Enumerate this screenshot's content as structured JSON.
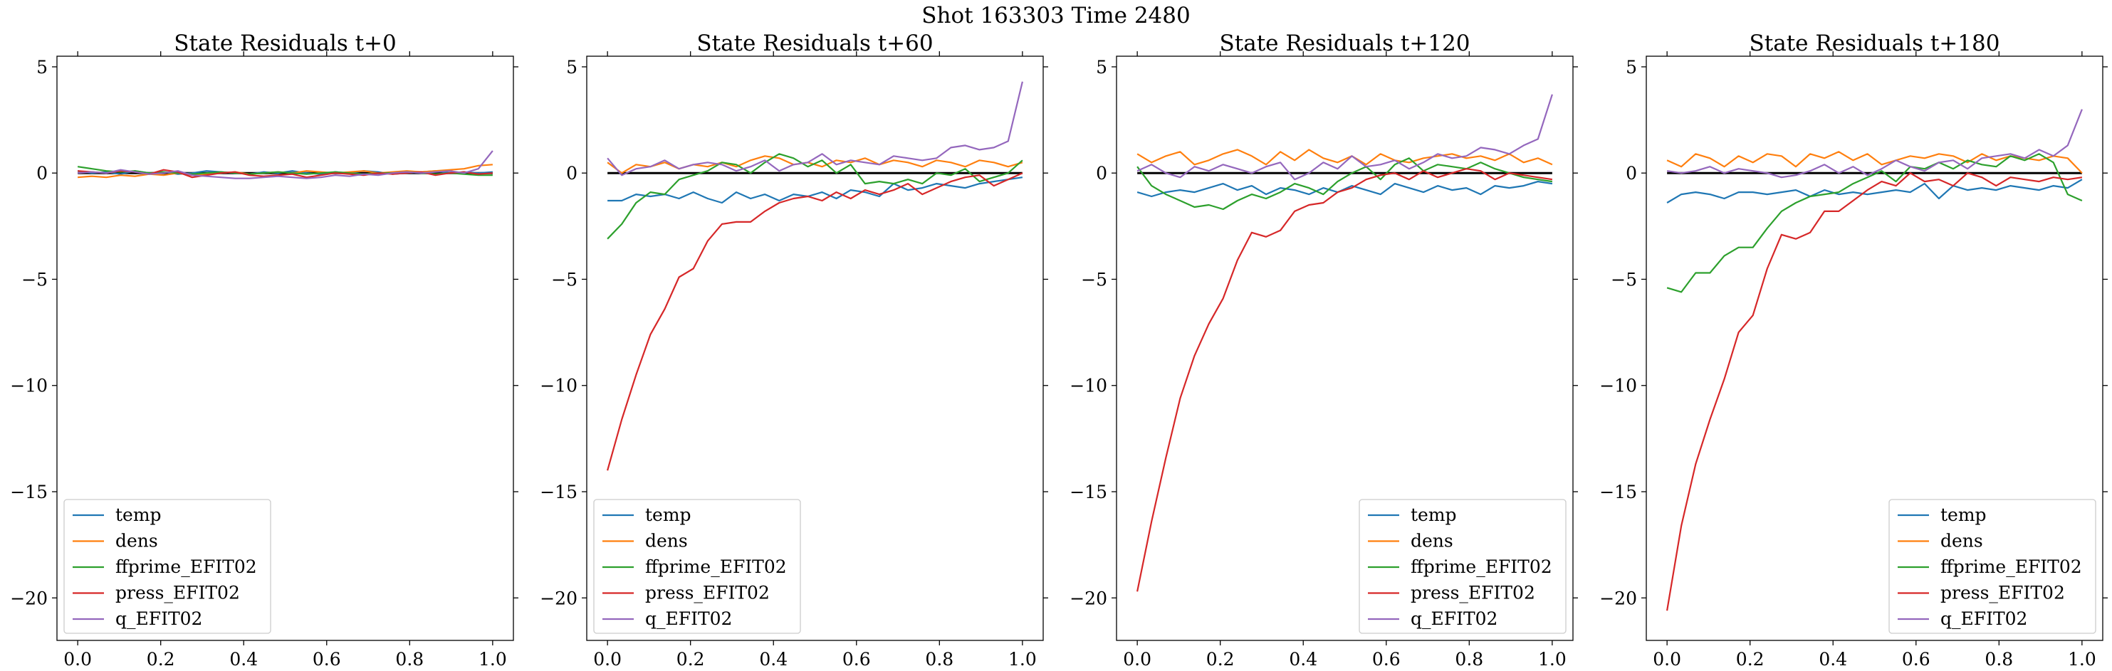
{
  "suptitle": "Shot 163303   Time 2480",
  "chart_data": [
    {
      "type": "line",
      "title": "State Residuals t+0",
      "xlim": [
        -0.05,
        1.05
      ],
      "ylim": [
        -22,
        5.5
      ],
      "xticks": [
        0.0,
        0.2,
        0.4,
        0.6,
        0.8,
        1.0
      ],
      "xtick_labels": [
        "0.0",
        "0.2",
        "0.4",
        "0.6",
        "0.8",
        "1.0"
      ],
      "yticks": [
        -20,
        -15,
        -10,
        -5,
        0,
        5
      ],
      "ytick_labels": [
        "−20",
        "−15",
        "−10",
        "−5",
        "0",
        "5"
      ],
      "reference_line": 0,
      "legend_position": "lower left",
      "x": [
        0.0,
        0.0345,
        0.069,
        0.1034,
        0.1379,
        0.1724,
        0.2069,
        0.2414,
        0.2759,
        0.3103,
        0.3448,
        0.3793,
        0.4138,
        0.4483,
        0.4828,
        0.5172,
        0.5517,
        0.5862,
        0.6207,
        0.6552,
        0.6897,
        0.7241,
        0.7586,
        0.7931,
        0.8276,
        0.8621,
        0.8966,
        0.931,
        0.9655,
        1.0
      ],
      "series": [
        {
          "name": "temp",
          "color": "#1f77b4",
          "values": [
            0.1,
            0.0,
            0.05,
            -0.05,
            0.1,
            0.0,
            0.05,
            -0.05,
            0.0,
            0.1,
            0.05,
            0.0,
            -0.05,
            0.05,
            0.0,
            0.1,
            0.0,
            -0.05,
            0.05,
            0.0,
            0.1,
            0.05,
            -0.05,
            0.0,
            0.05,
            0.1,
            0.0,
            0.05,
            0.0,
            0.05
          ]
        },
        {
          "name": "dens",
          "color": "#ff7f0e",
          "values": [
            -0.2,
            -0.15,
            -0.2,
            -0.1,
            -0.15,
            -0.05,
            -0.1,
            0.0,
            -0.1,
            -0.05,
            0.0,
            0.05,
            -0.05,
            0.0,
            0.05,
            0.0,
            0.1,
            0.05,
            0.0,
            0.05,
            0.1,
            0.0,
            0.05,
            0.1,
            0.05,
            0.1,
            0.15,
            0.2,
            0.35,
            0.4
          ]
        },
        {
          "name": "ffprime_EFIT02",
          "color": "#2ca02c",
          "values": [
            0.3,
            0.2,
            0.1,
            0.05,
            0.1,
            0.0,
            0.05,
            0.0,
            -0.05,
            0.0,
            0.05,
            0.0,
            -0.05,
            0.0,
            0.05,
            0.0,
            -0.05,
            0.0,
            0.05,
            0.0,
            -0.05,
            0.0,
            0.0,
            0.05,
            0.0,
            -0.05,
            0.0,
            -0.05,
            -0.1,
            -0.1
          ]
        },
        {
          "name": "press_EFIT02",
          "color": "#d62728",
          "values": [
            0.1,
            0.05,
            0.0,
            0.1,
            0.05,
            -0.05,
            0.15,
            0.05,
            -0.2,
            -0.1,
            0.0,
            0.05,
            -0.1,
            -0.15,
            -0.1,
            -0.05,
            -0.2,
            -0.1,
            0.0,
            -0.05,
            -0.1,
            0.0,
            -0.05,
            0.0,
            0.05,
            -0.1,
            0.0,
            0.05,
            -0.05,
            0.0
          ]
        },
        {
          "name": "q_EFIT02",
          "color": "#9467bd",
          "values": [
            0.0,
            0.05,
            0.0,
            0.15,
            0.05,
            -0.05,
            0.0,
            0.1,
            -0.1,
            -0.15,
            -0.2,
            -0.25,
            -0.25,
            -0.2,
            -0.15,
            -0.2,
            -0.25,
            -0.2,
            -0.1,
            -0.15,
            -0.05,
            -0.1,
            0.0,
            0.05,
            0.0,
            0.05,
            0.1,
            0.0,
            0.2,
            1.05
          ]
        }
      ]
    },
    {
      "type": "line",
      "title": "State Residuals t+60",
      "xlim": [
        -0.05,
        1.05
      ],
      "ylim": [
        -22,
        5.5
      ],
      "xticks": [
        0.0,
        0.2,
        0.4,
        0.6,
        0.8,
        1.0
      ],
      "xtick_labels": [
        "0.0",
        "0.2",
        "0.4",
        "0.6",
        "0.8",
        "1.0"
      ],
      "yticks": [
        -20,
        -15,
        -10,
        -5,
        0,
        5
      ],
      "ytick_labels": [
        "−20",
        "−15",
        "−10",
        "−5",
        "0",
        "5"
      ],
      "reference_line": 0,
      "legend_position": "lower left",
      "x": [
        0.0,
        0.0345,
        0.069,
        0.1034,
        0.1379,
        0.1724,
        0.2069,
        0.2414,
        0.2759,
        0.3103,
        0.3448,
        0.3793,
        0.4138,
        0.4483,
        0.4828,
        0.5172,
        0.5517,
        0.5862,
        0.6207,
        0.6552,
        0.6897,
        0.7241,
        0.7586,
        0.7931,
        0.8276,
        0.8621,
        0.8966,
        0.931,
        0.9655,
        1.0
      ],
      "series": [
        {
          "name": "temp",
          "color": "#1f77b4",
          "values": [
            -1.3,
            -1.3,
            -1.0,
            -1.1,
            -1.0,
            -1.2,
            -0.9,
            -1.2,
            -1.4,
            -0.9,
            -1.2,
            -1.0,
            -1.3,
            -1.0,
            -1.1,
            -0.9,
            -1.2,
            -0.8,
            -0.9,
            -1.1,
            -0.5,
            -0.8,
            -0.7,
            -0.5,
            -0.6,
            -0.7,
            -0.5,
            -0.4,
            -0.3,
            -0.2
          ]
        },
        {
          "name": "dens",
          "color": "#ff7f0e",
          "values": [
            0.5,
            0.0,
            0.4,
            0.3,
            0.5,
            0.2,
            0.4,
            0.3,
            0.5,
            0.3,
            0.6,
            0.8,
            0.7,
            0.4,
            0.5,
            0.3,
            0.6,
            0.5,
            0.7,
            0.4,
            0.6,
            0.5,
            0.3,
            0.6,
            0.5,
            0.3,
            0.6,
            0.5,
            0.3,
            0.5
          ]
        },
        {
          "name": "ffprime_EFIT02",
          "color": "#2ca02c",
          "values": [
            -3.1,
            -2.4,
            -1.4,
            -0.9,
            -1.0,
            -0.3,
            -0.1,
            0.1,
            0.5,
            0.4,
            0.0,
            0.5,
            0.9,
            0.7,
            0.3,
            0.6,
            0.0,
            0.4,
            -0.5,
            -0.4,
            -0.5,
            -0.3,
            -0.5,
            0.0,
            -0.1,
            0.2,
            -0.4,
            -0.2,
            0.0,
            0.6
          ]
        },
        {
          "name": "press_EFIT02",
          "color": "#d62728",
          "values": [
            -14.0,
            -11.6,
            -9.5,
            -7.6,
            -6.4,
            -4.9,
            -4.5,
            -3.2,
            -2.4,
            -2.3,
            -2.3,
            -1.8,
            -1.4,
            -1.2,
            -1.1,
            -1.3,
            -0.9,
            -1.2,
            -0.8,
            -1.0,
            -0.8,
            -0.5,
            -1.0,
            -0.7,
            -0.4,
            -0.2,
            -0.1,
            -0.6,
            -0.3,
            0.0
          ]
        },
        {
          "name": "q_EFIT02",
          "color": "#9467bd",
          "values": [
            0.7,
            -0.1,
            0.2,
            0.3,
            0.6,
            0.2,
            0.4,
            0.5,
            0.4,
            0.1,
            0.3,
            0.6,
            0.1,
            0.4,
            0.5,
            0.9,
            0.4,
            0.6,
            0.5,
            0.4,
            0.8,
            0.7,
            0.6,
            0.7,
            1.2,
            1.3,
            1.1,
            1.2,
            1.5,
            4.3
          ]
        }
      ]
    },
    {
      "type": "line",
      "title": "State Residuals t+120",
      "xlim": [
        -0.05,
        1.05
      ],
      "ylim": [
        -22,
        5.5
      ],
      "xticks": [
        0.0,
        0.2,
        0.4,
        0.6,
        0.8,
        1.0
      ],
      "xtick_labels": [
        "0.0",
        "0.2",
        "0.4",
        "0.6",
        "0.8",
        "1.0"
      ],
      "yticks": [
        -20,
        -15,
        -10,
        -5,
        0,
        5
      ],
      "ytick_labels": [
        "−20",
        "−15",
        "−10",
        "−5",
        "0",
        "5"
      ],
      "reference_line": 0,
      "legend_position": "lower right",
      "x": [
        0.0,
        0.0345,
        0.069,
        0.1034,
        0.1379,
        0.1724,
        0.2069,
        0.2414,
        0.2759,
        0.3103,
        0.3448,
        0.3793,
        0.4138,
        0.4483,
        0.4828,
        0.5172,
        0.5517,
        0.5862,
        0.6207,
        0.6552,
        0.6897,
        0.7241,
        0.7586,
        0.7931,
        0.8276,
        0.8621,
        0.8966,
        0.931,
        0.9655,
        1.0
      ],
      "series": [
        {
          "name": "temp",
          "color": "#1f77b4",
          "values": [
            -0.9,
            -1.1,
            -0.9,
            -0.8,
            -0.9,
            -0.7,
            -0.5,
            -0.8,
            -0.6,
            -1.0,
            -0.7,
            -0.8,
            -1.0,
            -0.7,
            -0.9,
            -0.6,
            -0.8,
            -1.0,
            -0.5,
            -0.7,
            -0.9,
            -0.6,
            -0.8,
            -0.7,
            -1.0,
            -0.6,
            -0.7,
            -0.6,
            -0.4,
            -0.5
          ]
        },
        {
          "name": "dens",
          "color": "#ff7f0e",
          "values": [
            0.9,
            0.5,
            0.8,
            1.0,
            0.4,
            0.6,
            0.9,
            1.1,
            0.8,
            0.4,
            1.0,
            0.6,
            1.1,
            0.7,
            0.5,
            0.8,
            0.4,
            0.9,
            0.6,
            0.5,
            0.7,
            0.8,
            0.9,
            0.7,
            0.8,
            0.6,
            0.9,
            0.5,
            0.7,
            0.4
          ]
        },
        {
          "name": "ffprime_EFIT02",
          "color": "#2ca02c",
          "values": [
            0.3,
            -0.6,
            -1.0,
            -1.3,
            -1.6,
            -1.5,
            -1.7,
            -1.3,
            -1.0,
            -1.2,
            -0.9,
            -0.5,
            -0.7,
            -1.0,
            -0.4,
            0.0,
            0.3,
            -0.3,
            0.4,
            0.7,
            0.1,
            0.4,
            0.3,
            0.2,
            0.5,
            0.2,
            0.0,
            -0.2,
            -0.3,
            -0.4
          ]
        },
        {
          "name": "press_EFIT02",
          "color": "#d62728",
          "values": [
            -19.7,
            -16.4,
            -13.4,
            -10.6,
            -8.6,
            -7.1,
            -5.9,
            -4.1,
            -2.8,
            -3.0,
            -2.7,
            -1.8,
            -1.5,
            -1.4,
            -0.9,
            -0.7,
            -0.3,
            -0.1,
            0.0,
            -0.3,
            0.1,
            -0.2,
            0.0,
            0.2,
            0.1,
            -0.3,
            0.0,
            -0.1,
            -0.2,
            -0.3
          ]
        },
        {
          "name": "q_EFIT02",
          "color": "#9467bd",
          "values": [
            0.1,
            0.4,
            0.0,
            -0.2,
            0.3,
            0.1,
            0.4,
            0.2,
            0.0,
            0.3,
            0.5,
            -0.3,
            0.0,
            0.5,
            0.2,
            0.8,
            0.3,
            0.4,
            0.6,
            0.2,
            0.5,
            0.9,
            0.7,
            0.8,
            1.2,
            1.1,
            0.9,
            1.3,
            1.6,
            3.7
          ]
        }
      ]
    },
    {
      "type": "line",
      "title": "State Residuals t+180",
      "xlim": [
        -0.05,
        1.05
      ],
      "ylim": [
        -22,
        5.5
      ],
      "xticks": [
        0.0,
        0.2,
        0.4,
        0.6,
        0.8,
        1.0
      ],
      "xtick_labels": [
        "0.0",
        "0.2",
        "0.4",
        "0.6",
        "0.8",
        "1.0"
      ],
      "yticks": [
        -20,
        -15,
        -10,
        -5,
        0,
        5
      ],
      "ytick_labels": [
        "−20",
        "−15",
        "−10",
        "−5",
        "0",
        "5"
      ],
      "reference_line": 0,
      "legend_position": "lower right",
      "x": [
        0.0,
        0.0345,
        0.069,
        0.1034,
        0.1379,
        0.1724,
        0.2069,
        0.2414,
        0.2759,
        0.3103,
        0.3448,
        0.3793,
        0.4138,
        0.4483,
        0.4828,
        0.5172,
        0.5517,
        0.5862,
        0.6207,
        0.6552,
        0.6897,
        0.7241,
        0.7586,
        0.7931,
        0.8276,
        0.8621,
        0.8966,
        0.931,
        0.9655,
        1.0
      ],
      "series": [
        {
          "name": "temp",
          "color": "#1f77b4",
          "values": [
            -1.4,
            -1.0,
            -0.9,
            -1.0,
            -1.2,
            -0.9,
            -0.9,
            -1.0,
            -0.9,
            -0.8,
            -1.1,
            -0.8,
            -1.0,
            -0.9,
            -1.0,
            -0.9,
            -0.8,
            -0.9,
            -0.5,
            -1.2,
            -0.6,
            -0.8,
            -0.7,
            -0.8,
            -0.6,
            -0.7,
            -0.8,
            -0.6,
            -0.7,
            -0.3
          ]
        },
        {
          "name": "dens",
          "color": "#ff7f0e",
          "values": [
            0.6,
            0.3,
            0.9,
            0.7,
            0.3,
            0.8,
            0.5,
            0.9,
            0.8,
            0.3,
            0.9,
            0.7,
            1.0,
            0.6,
            0.9,
            0.4,
            0.6,
            0.8,
            0.7,
            0.9,
            0.8,
            0.5,
            0.9,
            0.6,
            0.8,
            0.7,
            0.6,
            0.8,
            0.7,
            0.0
          ]
        },
        {
          "name": "ffprime_EFIT02",
          "color": "#2ca02c",
          "values": [
            -5.4,
            -5.6,
            -4.7,
            -4.7,
            -3.9,
            -3.5,
            -3.5,
            -2.6,
            -1.8,
            -1.4,
            -1.1,
            -1.0,
            -0.9,
            -0.5,
            -0.2,
            0.1,
            -0.4,
            0.3,
            0.2,
            0.5,
            0.2,
            0.6,
            0.4,
            0.3,
            0.8,
            0.6,
            0.9,
            0.5,
            -1.0,
            -1.3
          ]
        },
        {
          "name": "press_EFIT02",
          "color": "#d62728",
          "values": [
            -20.6,
            -16.6,
            -13.7,
            -11.6,
            -9.7,
            -7.5,
            -6.7,
            -4.5,
            -2.9,
            -3.1,
            -2.8,
            -1.8,
            -1.8,
            -1.3,
            -0.8,
            -0.4,
            -0.6,
            0.0,
            -0.4,
            -0.3,
            -0.6,
            0.0,
            -0.2,
            -0.6,
            -0.2,
            -0.3,
            -0.4,
            -0.2,
            -0.3,
            -0.2
          ]
        },
        {
          "name": "q_EFIT02",
          "color": "#9467bd",
          "values": [
            0.1,
            0.0,
            0.1,
            0.3,
            0.0,
            0.2,
            0.1,
            0.0,
            -0.2,
            -0.1,
            0.1,
            0.4,
            0.0,
            0.3,
            -0.1,
            0.2,
            0.6,
            0.3,
            0.1,
            0.5,
            0.6,
            0.2,
            0.7,
            0.8,
            0.9,
            0.7,
            1.1,
            0.8,
            1.3,
            3.0
          ]
        }
      ]
    }
  ]
}
